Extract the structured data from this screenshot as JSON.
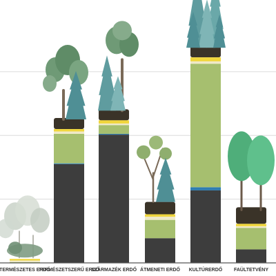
{
  "chart_data": {
    "type": "bar",
    "stacked": true,
    "categories": [
      "TERMÉSZETES ERDŐ",
      "TERMÉSZETSZERŰ ERDŐ",
      "SZÁRMAZÉK ERDŐ",
      "ÁTMENETI ERDŐ",
      "KULTÚRERDŐ",
      "FAÜLTETVÉNY"
    ],
    "series": [
      {
        "key": "dark",
        "color": "#3d3d3d",
        "values": [
          0,
          124,
          161,
          31,
          91,
          17
        ]
      },
      {
        "key": "blue",
        "color": "#2f7db0",
        "values": [
          0,
          1,
          1,
          0,
          4,
          0
        ]
      },
      {
        "key": "green",
        "color": "#a6bf6f",
        "values": [
          1,
          37,
          11,
          23,
          155,
          27
        ]
      },
      {
        "key": "cream",
        "color": "#efe9c8",
        "values": [
          2,
          3,
          2,
          4,
          3,
          2
        ]
      },
      {
        "key": "yellow",
        "color": "#f0d63c",
        "values": [
          2,
          3,
          4,
          3,
          5,
          3
        ]
      }
    ],
    "ylim": [
      0,
      330
    ],
    "grid": true,
    "legend": "none",
    "colors": {
      "grid": "#dcdcdc",
      "axis": "#555555",
      "soil": "#3a3328",
      "foliage": "#6f9a76",
      "conifer": "#5f9c9f",
      "poplar": "#4fae7a"
    },
    "icons": [
      "misty-forest-icon",
      "mixed-forest-icon",
      "mixed-forest-icon",
      "young-forest-icon",
      "conifer-stand-icon",
      "poplar-plantation-icon"
    ]
  }
}
